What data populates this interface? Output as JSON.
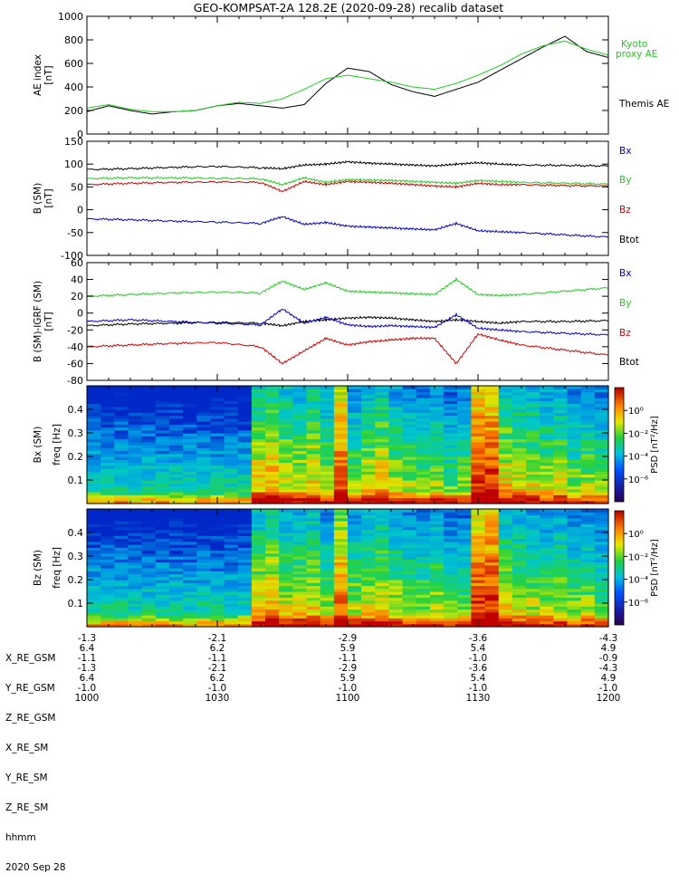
{
  "title": "GEO-KOMPSAT-2A 128.2E (2020-09-28) recalib dataset",
  "colors": {
    "black": "#000000",
    "green": "#22cc22",
    "blue": "#0000cc",
    "red": "#cc0000"
  },
  "chart_data": [
    {
      "id": "ae",
      "type": "line",
      "ylabel": "AE index [nT]",
      "ylim": [
        0,
        1000
      ],
      "yticks": [
        "0",
        "200",
        "400",
        "600",
        "800",
        "1000"
      ],
      "legend": [
        "Kyoto proxy AE",
        "Themis AE"
      ],
      "legend_lines": [
        "Kyoto",
        "proxy AE",
        "Themis AE"
      ],
      "x": [
        0,
        5,
        10,
        15,
        20,
        25,
        30,
        35,
        40,
        45,
        50,
        55,
        60,
        65,
        70,
        75,
        80,
        85,
        90,
        95,
        100,
        105,
        110,
        115,
        120
      ],
      "series": [
        {
          "name": "Themis AE",
          "color": "#000000",
          "values": [
            190,
            240,
            200,
            170,
            190,
            200,
            240,
            260,
            240,
            220,
            250,
            430,
            560,
            530,
            420,
            360,
            320,
            380,
            440,
            540,
            640,
            740,
            830,
            700,
            650
          ]
        },
        {
          "name": "Kyoto proxy AE",
          "color": "#22cc22",
          "values": [
            220,
            250,
            210,
            190,
            190,
            200,
            240,
            270,
            260,
            300,
            380,
            470,
            500,
            470,
            440,
            400,
            380,
            430,
            500,
            580,
            680,
            750,
            790,
            720,
            670
          ]
        }
      ]
    },
    {
      "id": "bsm",
      "type": "line",
      "ylabel": "B (SM) [nT]",
      "ylim": [
        -100,
        150
      ],
      "yticks": [
        "-100",
        "-50",
        "0",
        "50",
        "100",
        "150"
      ],
      "legend": [
        "Bx",
        "By",
        "Bz",
        "Btot"
      ],
      "x": [
        0,
        10,
        20,
        30,
        40,
        45,
        50,
        55,
        60,
        65,
        70,
        75,
        80,
        85,
        90,
        95,
        100,
        110,
        120
      ],
      "series": [
        {
          "name": "Btot",
          "color": "#000000",
          "values": [
            88,
            90,
            93,
            95,
            92,
            90,
            98,
            100,
            105,
            102,
            100,
            98,
            96,
            100,
            103,
            100,
            98,
            97,
            96
          ]
        },
        {
          "name": "By",
          "color": "#22cc22",
          "values": [
            68,
            70,
            70,
            69,
            68,
            55,
            70,
            60,
            66,
            65,
            64,
            62,
            60,
            58,
            64,
            62,
            60,
            58,
            56
          ]
        },
        {
          "name": "Bz",
          "color": "#cc0000",
          "values": [
            55,
            58,
            60,
            61,
            60,
            40,
            62,
            55,
            62,
            60,
            58,
            55,
            52,
            50,
            58,
            55,
            55,
            53,
            52
          ]
        },
        {
          "name": "Bx",
          "color": "#0000cc",
          "values": [
            -20,
            -22,
            -25,
            -27,
            -30,
            -15,
            -32,
            -28,
            -36,
            -38,
            -40,
            -42,
            -44,
            -30,
            -46,
            -48,
            -50,
            -55,
            -60
          ]
        }
      ]
    },
    {
      "id": "bdiff",
      "type": "line",
      "ylabel": "B (SM)-IGRF (SM) [nT]",
      "ylim": [
        -80,
        60
      ],
      "yticks": [
        "-80",
        "-60",
        "-40",
        "-20",
        "0",
        "20",
        "40",
        "60"
      ],
      "legend": [
        "Bx",
        "By",
        "Bz",
        "Btot"
      ],
      "x": [
        0,
        10,
        20,
        30,
        40,
        45,
        50,
        55,
        60,
        65,
        70,
        75,
        80,
        85,
        90,
        95,
        100,
        110,
        120
      ],
      "series": [
        {
          "name": "By",
          "color": "#22cc22",
          "values": [
            20,
            22,
            24,
            25,
            24,
            38,
            28,
            36,
            26,
            25,
            24,
            23,
            22,
            40,
            22,
            21,
            22,
            26,
            30
          ]
        },
        {
          "name": "Btot",
          "color": "#000000",
          "values": [
            -15,
            -13,
            -12,
            -11,
            -12,
            -15,
            -10,
            -8,
            -6,
            -5,
            -6,
            -8,
            -10,
            -8,
            -10,
            -12,
            -10,
            -10,
            -9
          ]
        },
        {
          "name": "Bx",
          "color": "#0000cc",
          "values": [
            -10,
            -8,
            -10,
            -12,
            -14,
            5,
            -12,
            -5,
            -14,
            -16,
            -15,
            -16,
            -17,
            -2,
            -18,
            -20,
            -22,
            -24,
            -26
          ]
        },
        {
          "name": "Bz",
          "color": "#cc0000",
          "values": [
            -40,
            -38,
            -36,
            -35,
            -40,
            -60,
            -45,
            -30,
            -38,
            -34,
            -32,
            -30,
            -30,
            -60,
            -25,
            -32,
            -38,
            -44,
            -50
          ]
        }
      ]
    },
    {
      "id": "spec_bx",
      "type": "heatmap",
      "ylabel": "Bx (SM) freq [Hz]",
      "ylim": [
        0,
        0.5
      ],
      "yticks": [
        "0.1",
        "0.2",
        "0.3",
        "0.4"
      ],
      "colorbar_label": "PSD [nT²/Hz]",
      "colorbar_ticks": [
        "10⁰",
        "10⁻²",
        "10⁻⁴",
        "10⁻⁶"
      ],
      "columns": [
        0.05,
        0.03,
        0.05,
        0.04,
        0.06,
        0.03,
        0.05,
        0.04,
        0.05,
        0.03,
        0.05,
        0.04,
        0.6,
        0.7,
        0.55,
        0.5,
        0.6,
        0.45,
        0.9,
        0.4,
        0.5,
        0.6,
        0.45,
        0.4,
        0.35,
        0.4,
        0.3,
        0.35,
        1.0,
        1.0,
        0.6,
        0.55,
        0.5,
        0.45,
        0.5,
        0.35,
        0.4,
        0.35
      ]
    },
    {
      "id": "spec_bz",
      "type": "heatmap",
      "ylabel": "Bz (SM) freq [Hz]",
      "ylim": [
        0,
        0.5
      ],
      "yticks": [
        "0.1",
        "0.2",
        "0.3",
        "0.4"
      ],
      "colorbar_label": "PSD [nT²/Hz]",
      "colorbar_ticks": [
        "10⁰",
        "10⁻²",
        "10⁻⁴",
        "10⁻⁶"
      ],
      "columns": [
        0.05,
        0.04,
        0.05,
        0.03,
        0.06,
        0.04,
        0.05,
        0.03,
        0.05,
        0.04,
        0.05,
        0.04,
        0.55,
        0.65,
        0.5,
        0.5,
        0.55,
        0.4,
        0.85,
        0.45,
        0.5,
        0.55,
        0.45,
        0.4,
        0.35,
        0.45,
        0.3,
        0.3,
        0.95,
        1.0,
        0.55,
        0.5,
        0.45,
        0.4,
        0.45,
        0.35,
        0.4,
        0.3
      ]
    }
  ],
  "ephemeris": {
    "labels": [
      "X_RE_GSM",
      "Y_RE_GSM",
      "Z_RE_GSM",
      "X_RE_SM",
      "Y_RE_SM",
      "Z_RE_SM",
      "hhmm",
      "2020 Sep 28"
    ],
    "columns": [
      [
        "-1.3",
        "6.4",
        "-1.1",
        "-1.3",
        "6.4",
        "-1.0",
        "1000"
      ],
      [
        "-2.1",
        "6.2",
        "-1.1",
        "-2.1",
        "6.2",
        "-1.0",
        "1030"
      ],
      [
        "-2.9",
        "5.9",
        "-1.1",
        "-2.9",
        "5.9",
        "-1.0",
        "1100"
      ],
      [
        "-3.6",
        "5.4",
        "-1.0",
        "-3.6",
        "5.4",
        "-1.0",
        "1130"
      ],
      [
        "-4.3",
        "4.9",
        "-0.9",
        "-4.3",
        "4.9",
        "-1.0",
        "1200"
      ]
    ]
  }
}
